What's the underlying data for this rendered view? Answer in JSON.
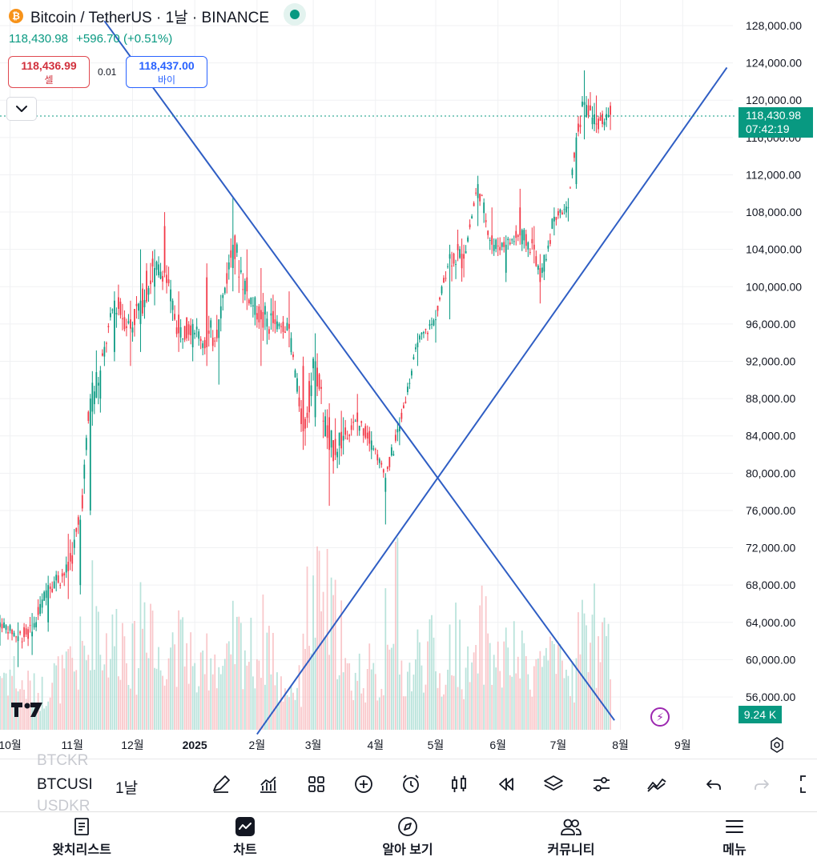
{
  "header": {
    "logo_symbol": "₿",
    "title": "Bitcoin / TetherUS · 1날 · BINANCE",
    "last_price": "118,430.98",
    "change": "+596.70 (+0.51%)"
  },
  "trade": {
    "sell_price": "118,436.99",
    "sell_label": "셀",
    "spread": "0.01",
    "buy_price": "118,437.00",
    "buy_label": "바이"
  },
  "price_scale": {
    "labels": [
      "128,000.00",
      "124,000.00",
      "120,000.00",
      "116,000.00",
      "112,000.00",
      "108,000.00",
      "104,000.00",
      "100,000.00",
      "96,000.00",
      "92,000.00",
      "88,000.00",
      "84,000.00",
      "80,000.00",
      "76,000.00",
      "72,000.00",
      "68,000.00",
      "64,000.00",
      "60,000.00",
      "56,000.00"
    ],
    "current_price": "118,430.98",
    "countdown": "07:42:19",
    "volume": "9.24 K"
  },
  "time_axis": {
    "labels": [
      "10월",
      "11월",
      "12월",
      "2025",
      "2월",
      "3월",
      "4월",
      "5월",
      "6월",
      "7월",
      "8월",
      "9월"
    ]
  },
  "toolbar": {
    "symbol": "BTCUSI",
    "symbol_above": "BTCKR",
    "symbol_below": "USDKR",
    "interval": "1날",
    "icons": [
      "draw-icon",
      "indicators-icon",
      "layout-icon",
      "add-icon",
      "alert-icon",
      "candle-icon",
      "replay-icon",
      "layers-icon",
      "settings-icon",
      "trendline-icon",
      "undo-icon",
      "redo-icon",
      "fullscreen-icon"
    ]
  },
  "bottom_nav": [
    {
      "label": "왓치리스트",
      "icon": "watchlist-icon"
    },
    {
      "label": "차트",
      "icon": "chart-icon"
    },
    {
      "label": "알아 보기",
      "icon": "explore-icon"
    },
    {
      "label": "커뮤니티",
      "icon": "community-icon"
    },
    {
      "label": "메뉴",
      "icon": "menu-icon"
    }
  ],
  "colors": {
    "up": "#089981",
    "down": "#f23645",
    "trendline": "#2f5ec4",
    "accent": "#2962ff"
  },
  "chart_data": {
    "type": "candlestick",
    "symbol": "BTCUSDT",
    "interval": "1D",
    "ylim": [
      52000,
      130000
    ],
    "x_range": [
      "2024-09-26",
      "2025-09-26"
    ],
    "candles": [
      [
        "2024-09-26",
        63500,
        64800,
        61500,
        64000,
        1.2
      ],
      [
        "2024-10-05",
        62000,
        64000,
        59200,
        62500,
        0.9
      ],
      [
        "2024-10-12",
        62500,
        65000,
        60500,
        63000,
        0.8
      ],
      [
        "2024-10-20",
        64000,
        69000,
        63000,
        68000,
        1.1
      ],
      [
        "2024-10-30",
        70500,
        73500,
        66500,
        69500,
        1.3
      ],
      [
        "2024-11-05",
        68000,
        75500,
        67000,
        75000,
        1.6
      ],
      [
        "2024-11-10",
        76000,
        88500,
        75500,
        88000,
        2.5
      ],
      [
        "2024-11-15",
        88000,
        91500,
        86500,
        91000,
        1.8
      ],
      [
        "2024-11-22",
        93000,
        99500,
        92000,
        98500,
        2.0
      ],
      [
        "2024-11-30",
        96500,
        98500,
        91500,
        95500,
        1.5
      ],
      [
        "2024-12-05",
        96000,
        104000,
        93000,
        98500,
        2.6
      ],
      [
        "2024-12-12",
        100000,
        104000,
        98000,
        102000,
        1.4
      ],
      [
        "2024-12-17",
        106500,
        108000,
        101000,
        101500,
        1.9
      ],
      [
        "2024-12-24",
        97000,
        99500,
        93000,
        95000,
        1.7
      ],
      [
        "2024-12-31",
        93500,
        96500,
        92000,
        96000,
        1.1
      ],
      [
        "2025-01-07",
        101000,
        102500,
        91500,
        93500,
        1.6
      ],
      [
        "2025-01-13",
        94500,
        96500,
        89500,
        96500,
        1.3
      ],
      [
        "2025-01-20",
        102000,
        109500,
        99500,
        104500,
        1.8
      ],
      [
        "2025-01-27",
        101000,
        104000,
        97500,
        99500,
        1.6
      ],
      [
        "2025-02-03",
        97500,
        102000,
        91500,
        96500,
        1.9
      ],
      [
        "2025-02-10",
        96500,
        98500,
        95000,
        96000,
        0.9
      ],
      [
        "2025-02-17",
        96000,
        99500,
        93500,
        95500,
        0.9
      ],
      [
        "2025-02-24",
        91500,
        92500,
        82500,
        84500,
        2.4
      ],
      [
        "2025-03-02",
        86000,
        95000,
        85000,
        92000,
        2.6
      ],
      [
        "2025-03-09",
        86000,
        87500,
        76500,
        82500,
        2.2
      ],
      [
        "2025-03-16",
        83500,
        86000,
        82000,
        84000,
        1.1
      ],
      [
        "2025-03-23",
        86500,
        88500,
        84000,
        85500,
        1.2
      ],
      [
        "2025-03-30",
        82500,
        84500,
        81500,
        83500,
        1.0
      ],
      [
        "2025-04-06",
        78000,
        80000,
        74500,
        79500,
        2.7
      ],
      [
        "2025-04-13",
        84500,
        86000,
        83000,
        85000,
        1.2
      ],
      [
        "2025-04-22",
        93500,
        95000,
        91500,
        94000,
        1.6
      ],
      [
        "2025-05-01",
        96500,
        97500,
        94000,
        96500,
        1.1
      ],
      [
        "2025-05-08",
        103000,
        104500,
        96500,
        103500,
        1.8
      ],
      [
        "2025-05-15",
        103500,
        104500,
        101000,
        103000,
        1.2
      ],
      [
        "2025-05-22",
        109500,
        111900,
        106500,
        111000,
        2.0
      ],
      [
        "2025-05-29",
        105500,
        108500,
        103500,
        104500,
        1.4
      ],
      [
        "2025-06-05",
        101500,
        105500,
        100500,
        104500,
        1.5
      ],
      [
        "2025-06-12",
        108500,
        110500,
        104500,
        105500,
        1.4
      ],
      [
        "2025-06-19",
        104500,
        106500,
        102500,
        104000,
        1.3
      ],
      [
        "2025-06-22",
        102000,
        103500,
        98200,
        100500,
        1.5
      ],
      [
        "2025-06-29",
        107000,
        108500,
        105500,
        107500,
        1.2
      ],
      [
        "2025-07-06",
        108500,
        109500,
        107000,
        108500,
        1.1
      ],
      [
        "2025-07-10",
        111000,
        116500,
        110500,
        116000,
        1.9
      ],
      [
        "2025-07-14",
        119500,
        123200,
        115800,
        119800,
        2.2
      ],
      [
        "2025-07-20",
        117500,
        120500,
        116500,
        117400,
        1.6
      ],
      [
        "2025-07-27",
        119400,
        119800,
        116800,
        118431,
        0.9
      ]
    ],
    "trendlines": [
      {
        "name": "descending",
        "from": [
          "2024-11-17",
          128500
        ],
        "to": [
          "2025-07-29",
          53500
        ]
      },
      {
        "name": "ascending",
        "from": [
          "2025-02-01",
          52000
        ],
        "to": [
          "2025-09-23",
          123500
        ]
      }
    ],
    "last_price": 118430.98,
    "volume_last": "9.24 K"
  }
}
